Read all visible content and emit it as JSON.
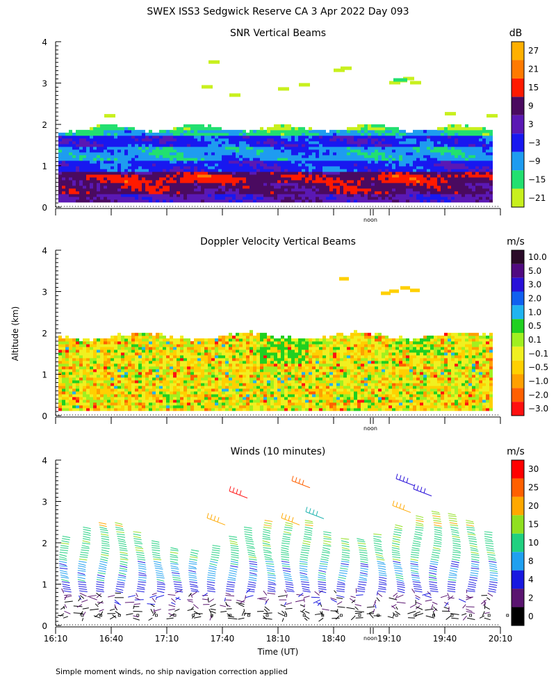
{
  "header": {
    "title": "SWEX ISS3 Sedgwick Reserve CA    3 Apr 2022 Day 093"
  },
  "axes": {
    "ylabel": "Altitude (km)",
    "xlabel": "Time (UT)",
    "noon_label": "noon",
    "y_ticks": [
      "0",
      "1",
      "2",
      "3",
      "4"
    ],
    "x_ticks": [
      "16:10",
      "16:40",
      "17:10",
      "17:40",
      "18:10",
      "18:40",
      "19:10",
      "19:40",
      "20:10"
    ]
  },
  "footer": {
    "note": "Simple moment winds, no ship navigation correction applied"
  },
  "chart_data": [
    {
      "type": "heatmap",
      "title": "SNR Vertical Beams",
      "colorbar_units": "dB",
      "colorbar_labels": [
        "27",
        "21",
        "15",
        "9",
        "3",
        "−3",
        "−9",
        "−15",
        "−21"
      ],
      "colorbar_colors": [
        "#ffb000",
        "#ff7a00",
        "#ff1a00",
        "#4a0a60",
        "#5a18b4",
        "#1818f0",
        "#1e9cf0",
        "#22e070",
        "#c8f01e"
      ],
      "xlim": [
        "16:10",
        "20:10"
      ],
      "ylim": [
        0,
        4
      ],
      "bands": [
        {
          "from_km": 0.1,
          "to_km": 0.3,
          "value_db": 3
        },
        {
          "from_km": 0.3,
          "to_km": 0.55,
          "value_db": 9
        },
        {
          "from_km": 0.55,
          "to_km": 0.75,
          "value_db": 12
        },
        {
          "from_km": 0.75,
          "to_km": 0.85,
          "value_db": 9
        },
        {
          "from_km": 0.85,
          "to_km": 1.1,
          "value_db": -3
        },
        {
          "from_km": 1.1,
          "to_km": 1.45,
          "value_db": -9
        },
        {
          "from_km": 1.45,
          "to_km": 1.7,
          "value_db": -3
        },
        {
          "from_km": 1.7,
          "to_km": 1.85,
          "value_db": -12
        },
        {
          "from_km": 1.85,
          "to_km": 2.0,
          "value_db": -18
        }
      ],
      "upper_echo_km": [
        3.0,
        3.4
      ]
    },
    {
      "type": "heatmap",
      "title": "Doppler Velocity Vertical Beams",
      "colorbar_units": "m/s",
      "colorbar_labels": [
        "10.0",
        "5.0",
        "3.0",
        "2.0",
        "1.0",
        "0.5",
        "0.1",
        "−0.1",
        "−0.5",
        "−1.0",
        "−2.0",
        "−3.0"
      ],
      "colorbar_colors": [
        "#2a0a28",
        "#500a80",
        "#2810d8",
        "#1060f0",
        "#20b4f0",
        "#20d020",
        "#a0f020",
        "#f0f020",
        "#ffd000",
        "#ffa000",
        "#ff6000",
        "#ff1010"
      ],
      "xlim": [
        "16:10",
        "20:10"
      ],
      "ylim": [
        0,
        4
      ],
      "data_top_km": 2.0
    },
    {
      "type": "scatter",
      "title": "Winds (10 minutes)",
      "colorbar_units": "m/s",
      "colorbar_labels": [
        "30",
        "25",
        "20",
        "15",
        "10",
        "8",
        "4",
        "2",
        "0"
      ],
      "colorbar_colors": [
        "#ff0000",
        "#ff6000",
        "#ffa800",
        "#90e020",
        "#20d080",
        "#20a0f0",
        "#1818e0",
        "#5a1470",
        "#000000"
      ],
      "xlim": [
        "16:10",
        "20:10"
      ],
      "ylim": [
        0,
        4
      ],
      "profiles_count": 24,
      "profile_top_km": 2.2,
      "speed_by_height": [
        {
          "from_km": 0.1,
          "to_km": 0.5,
          "speed": 1
        },
        {
          "from_km": 0.5,
          "to_km": 0.8,
          "speed": 3
        },
        {
          "from_km": 0.8,
          "to_km": 1.1,
          "speed": 6
        },
        {
          "from_km": 1.1,
          "to_km": 1.6,
          "speed": 9
        },
        {
          "from_km": 1.6,
          "to_km": 2.4,
          "speed": 14
        },
        {
          "from_km": 2.4,
          "to_km": 2.8,
          "speed": 19
        }
      ]
    }
  ]
}
